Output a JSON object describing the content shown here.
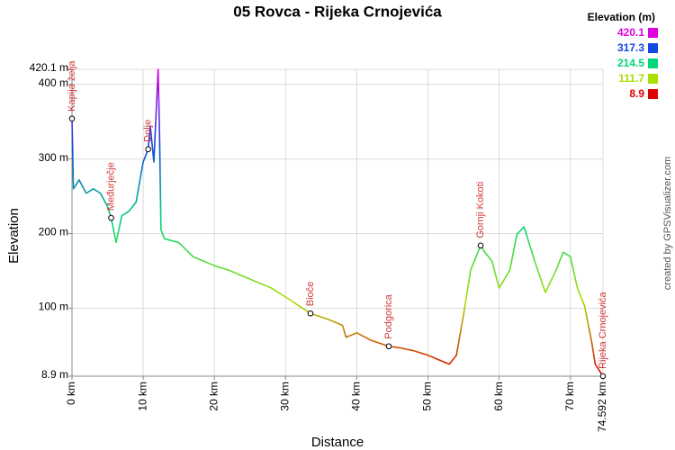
{
  "chart_data": {
    "type": "line",
    "title": "05 Rovca - Rijeka Crnojevića",
    "x_label": "Distance",
    "y_label": "Elevation",
    "legend_title": "Elevation (m)",
    "credit": "created by GPSVisualizer.com",
    "grid": true,
    "xlim": [
      0,
      74.592
    ],
    "ylim": [
      8.9,
      420.1
    ],
    "xticks": [
      {
        "value": 0,
        "label": "0 km"
      },
      {
        "value": 10,
        "label": "10 km"
      },
      {
        "value": 20,
        "label": "20 km"
      },
      {
        "value": 30,
        "label": "30 km"
      },
      {
        "value": 40,
        "label": "40 km"
      },
      {
        "value": 50,
        "label": "50 km"
      },
      {
        "value": 60,
        "label": "60 km"
      },
      {
        "value": 70,
        "label": "70 km"
      },
      {
        "value": 74.592,
        "label": "74.592 km"
      }
    ],
    "yticks": [
      {
        "value": 8.9,
        "label": "8.9 m"
      },
      {
        "value": 100,
        "label": "100 m"
      },
      {
        "value": 200,
        "label": "200 m"
      },
      {
        "value": 300,
        "label": "300 m"
      },
      {
        "value": 400,
        "label": "400 m"
      },
      {
        "value": 420.1,
        "label": "420.1 m"
      }
    ],
    "color_scale": [
      {
        "value": 420.1,
        "color": "#e000e0"
      },
      {
        "value": 317.3,
        "color": "#1048e0"
      },
      {
        "value": 214.5,
        "color": "#00d878"
      },
      {
        "value": 111.7,
        "color": "#a8e000"
      },
      {
        "value": 8.9,
        "color": "#e00000"
      }
    ],
    "x": [
      0,
      0.2,
      1,
      2,
      3,
      4,
      5,
      5.5,
      6.2,
      7,
      8,
      9,
      10,
      10.7,
      11,
      11.5,
      12.1,
      12.3,
      12.5,
      13,
      15,
      17,
      20,
      22,
      25,
      28,
      30,
      33.5,
      36,
      38,
      38.5,
      40,
      42,
      44.5,
      46,
      48,
      50,
      53,
      54,
      55,
      56,
      57.4,
      58,
      59,
      60,
      61.5,
      62.5,
      63.5,
      65,
      66.5,
      68,
      69,
      70,
      71,
      72,
      73,
      73.5,
      74.592
    ],
    "values": [
      354,
      260,
      272,
      254,
      260,
      254,
      236,
      221,
      188,
      224,
      230,
      242,
      296,
      313,
      344,
      296,
      420,
      332,
      205,
      193,
      188,
      169,
      157,
      151,
      139,
      127,
      115,
      93,
      85,
      77,
      61,
      67,
      57,
      49,
      47,
      43,
      37,
      25,
      37,
      91,
      151,
      184,
      175,
      163,
      127,
      151,
      199,
      209,
      163,
      121,
      151,
      175,
      169,
      127,
      103,
      55,
      25,
      9
    ],
    "waypoints": [
      {
        "name": "Kapija želja",
        "x": 0,
        "y": 354
      },
      {
        "name": "Međurječje",
        "x": 5.5,
        "y": 221
      },
      {
        "name": "Dolje",
        "x": 10.7,
        "y": 313
      },
      {
        "name": "Bioče",
        "x": 33.5,
        "y": 93
      },
      {
        "name": "Podgorica",
        "x": 44.5,
        "y": 49
      },
      {
        "name": "Gornji Kokoti",
        "x": 57.4,
        "y": 184
      },
      {
        "name": "Rijeka Crnojevića",
        "x": 74.592,
        "y": 9
      }
    ]
  }
}
